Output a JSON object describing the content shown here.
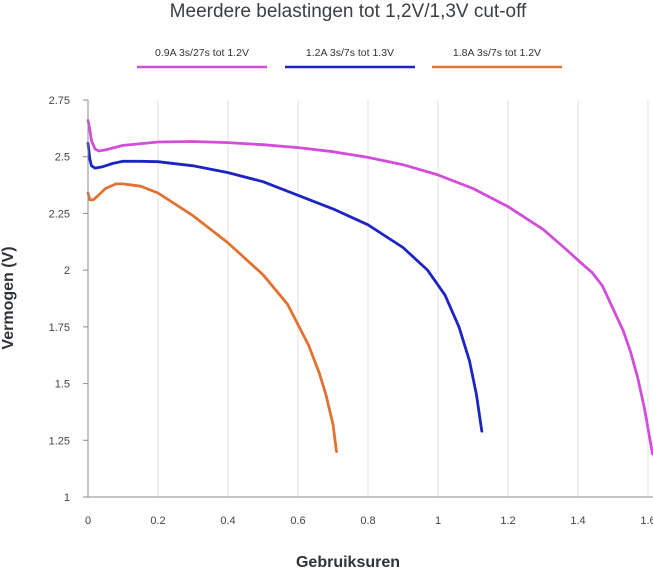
{
  "chart_data": {
    "type": "line",
    "title": "Meerdere belastingen tot 1,2V/1,3V cut-off",
    "xlabel": "Gebruiksuren",
    "ylabel": "Vermogen (V)",
    "xlim": [
      0,
      1.6
    ],
    "ylim": [
      1,
      2.75
    ],
    "x_ticks": [
      0,
      0.2,
      0.4,
      0.6,
      0.8,
      1,
      1.2,
      1.4,
      1.6
    ],
    "y_ticks": [
      1,
      1.25,
      1.5,
      1.75,
      2,
      2.25,
      2.5,
      2.75
    ],
    "x_tick_labels": [
      "0",
      "0.2",
      "0.4",
      "0.6",
      "0.8",
      "1",
      "1.2",
      "1.4",
      "1.6"
    ],
    "y_tick_labels": [
      "1",
      "1.25",
      "1.5",
      "1.75",
      "2",
      "2.25",
      "2.5",
      "2.75"
    ],
    "grid": "vertical",
    "legend_position": "top",
    "series": [
      {
        "name": "0.9A 3s/27s tot 1.2V",
        "color": "#d34ddb",
        "points": [
          [
            0.0,
            2.66
          ],
          [
            0.005,
            2.62
          ],
          [
            0.01,
            2.57
          ],
          [
            0.02,
            2.535
          ],
          [
            0.03,
            2.525
          ],
          [
            0.05,
            2.53
          ],
          [
            0.1,
            2.55
          ],
          [
            0.2,
            2.565
          ],
          [
            0.3,
            2.567
          ],
          [
            0.4,
            2.562
          ],
          [
            0.5,
            2.553
          ],
          [
            0.6,
            2.54
          ],
          [
            0.7,
            2.522
          ],
          [
            0.8,
            2.497
          ],
          [
            0.9,
            2.465
          ],
          [
            1.0,
            2.42
          ],
          [
            1.1,
            2.36
          ],
          [
            1.2,
            2.28
          ],
          [
            1.3,
            2.18
          ],
          [
            1.36,
            2.1
          ],
          [
            1.41,
            2.03
          ],
          [
            1.44,
            1.99
          ],
          [
            1.455,
            1.96
          ],
          [
            1.47,
            1.93
          ],
          [
            1.5,
            1.83
          ],
          [
            1.53,
            1.73
          ],
          [
            1.55,
            1.64
          ],
          [
            1.57,
            1.53
          ],
          [
            1.59,
            1.39
          ],
          [
            1.605,
            1.26
          ],
          [
            1.613,
            1.19
          ]
        ]
      },
      {
        "name": "1.2A 3s/7s tot 1.3V",
        "color": "#1c25c4",
        "points": [
          [
            0.0,
            2.56
          ],
          [
            0.005,
            2.49
          ],
          [
            0.01,
            2.46
          ],
          [
            0.02,
            2.45
          ],
          [
            0.04,
            2.455
          ],
          [
            0.07,
            2.47
          ],
          [
            0.1,
            2.48
          ],
          [
            0.15,
            2.48
          ],
          [
            0.2,
            2.478
          ],
          [
            0.3,
            2.46
          ],
          [
            0.4,
            2.43
          ],
          [
            0.5,
            2.39
          ],
          [
            0.6,
            2.33
          ],
          [
            0.7,
            2.27
          ],
          [
            0.8,
            2.2
          ],
          [
            0.9,
            2.1
          ],
          [
            0.97,
            2.0
          ],
          [
            1.02,
            1.89
          ],
          [
            1.06,
            1.75
          ],
          [
            1.09,
            1.6
          ],
          [
            1.11,
            1.45
          ],
          [
            1.125,
            1.29
          ]
        ]
      },
      {
        "name": "1.8A 3s/7s tot 1.2V",
        "color": "#e07232",
        "points": [
          [
            0.0,
            2.34
          ],
          [
            0.005,
            2.31
          ],
          [
            0.015,
            2.31
          ],
          [
            0.03,
            2.33
          ],
          [
            0.05,
            2.36
          ],
          [
            0.08,
            2.38
          ],
          [
            0.1,
            2.38
          ],
          [
            0.15,
            2.37
          ],
          [
            0.2,
            2.34
          ],
          [
            0.3,
            2.24
          ],
          [
            0.4,
            2.12
          ],
          [
            0.5,
            1.98
          ],
          [
            0.57,
            1.85
          ],
          [
            0.6,
            1.76
          ],
          [
            0.63,
            1.67
          ],
          [
            0.66,
            1.55
          ],
          [
            0.68,
            1.45
          ],
          [
            0.7,
            1.32
          ],
          [
            0.71,
            1.2
          ]
        ]
      }
    ]
  }
}
